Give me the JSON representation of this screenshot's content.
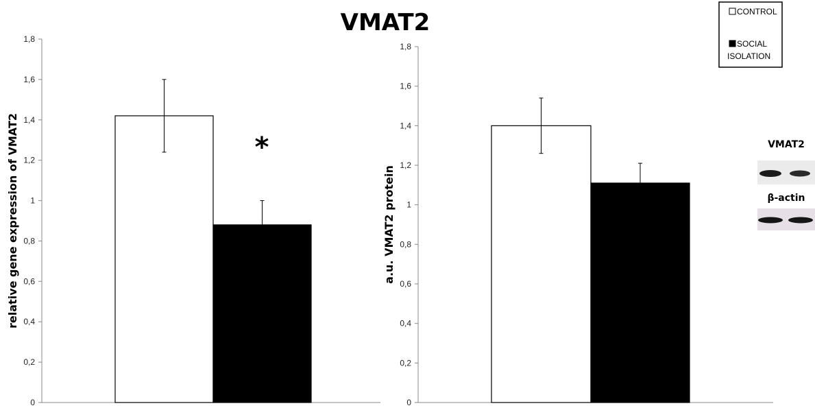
{
  "title": "VMAT2",
  "legend": {
    "entries": [
      {
        "label_lines": [
          "CONTROL"
        ],
        "color": "#ffffff"
      },
      {
        "label_lines": [
          "SOCIAL",
          "ISOLATION"
        ],
        "color": "#000000"
      }
    ]
  },
  "blot": {
    "top_label": "VMAT2",
    "bottom_label": "β-actin"
  },
  "chart_data": [
    {
      "type": "bar",
      "ylabel": "relative gene expression of VMAT2",
      "ylim": [
        0,
        1.8
      ],
      "yticks": [
        "0",
        "0,2",
        "0,4",
        "0,6",
        "0,8",
        "1",
        "1,2",
        "1,4",
        "1,6",
        "1,8"
      ],
      "categories": [
        "CONTROL",
        "SOCIAL ISOLATION"
      ],
      "values": [
        1.42,
        0.88
      ],
      "errors": [
        0.18,
        0.12
      ],
      "colors": [
        "#ffffff",
        "#000000"
      ],
      "annotation": "*"
    },
    {
      "type": "bar",
      "ylabel": "a.u.  VMAT2 protein",
      "ylim": [
        0,
        1.8
      ],
      "yticks": [
        "0",
        "0,2",
        "0,4",
        "0,6",
        "0,8",
        "1",
        "1,2",
        "1,4",
        "1,6",
        "1,8"
      ],
      "categories": [
        "CONTROL",
        "SOCIAL ISOLATION"
      ],
      "values": [
        1.4,
        1.11
      ],
      "errors": [
        0.14,
        0.1
      ],
      "colors": [
        "#ffffff",
        "#000000"
      ]
    }
  ]
}
